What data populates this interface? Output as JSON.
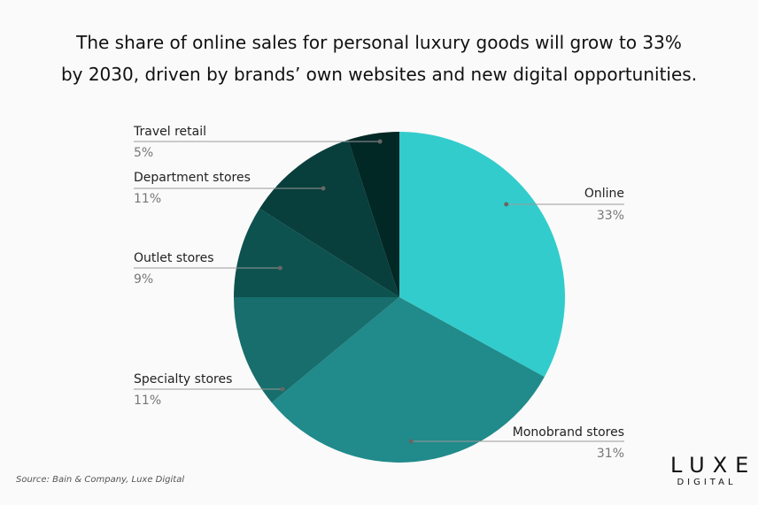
{
  "title_line1": "The share of online sales for personal luxury goods will grow to 33%",
  "title_line2": "by 2030, driven by brands’ own websites and new digital opportunities.",
  "source": "Source: Bain & Company, Luxe Digital",
  "logo": {
    "top": "LUXE",
    "bottom": "DIGITAL"
  },
  "chart_data": {
    "type": "pie",
    "start": "top, clockwise",
    "slices": [
      {
        "label": "Online",
        "value": 33,
        "display": "33%",
        "color": "#33cccc"
      },
      {
        "label": "Monobrand stores",
        "value": 31,
        "display": "31%",
        "color": "#218a8a"
      },
      {
        "label": "Specialty stores",
        "value": 11,
        "display": "11%",
        "color": "#176e6c"
      },
      {
        "label": "Outlet stores",
        "value": 9,
        "display": "9%",
        "color": "#0d524f"
      },
      {
        "label": "Department stores",
        "value": 11,
        "display": "11%",
        "color": "#083e3c"
      },
      {
        "label": "Travel retail",
        "value": 5,
        "display": "5%",
        "color": "#022826"
      }
    ]
  }
}
